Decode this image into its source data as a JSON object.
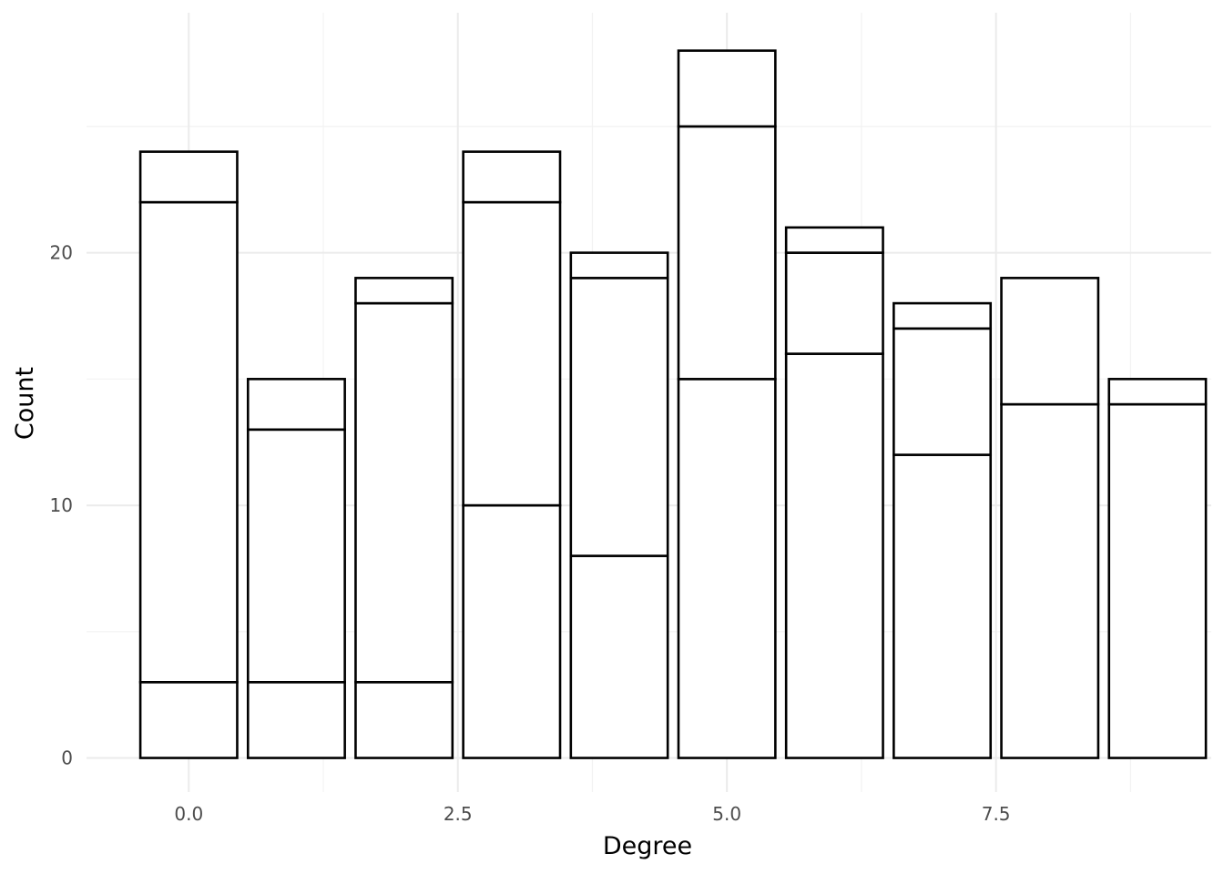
{
  "chart_data": {
    "type": "bar",
    "stacked": true,
    "title": "",
    "xlabel": "Degree",
    "ylabel": "Count",
    "x_ticks": [
      "0.0",
      "2.5",
      "5.0",
      "7.5"
    ],
    "x_tick_values": [
      0,
      2.5,
      5,
      7.5
    ],
    "y_ticks": [
      "0",
      "10",
      "20"
    ],
    "y_tick_values": [
      0,
      10,
      20
    ],
    "xlim": [
      -0.95,
      9.5
    ],
    "ylim": [
      -1.35,
      29.5
    ],
    "bar_width": 0.9,
    "grid": true,
    "legend": "none",
    "colors": {
      "fill": "#ffffff",
      "outline": "#000000",
      "grid": "#ebebeb"
    },
    "x": [
      0,
      1,
      2,
      3,
      4,
      5,
      6,
      7,
      8,
      9
    ],
    "series": [
      {
        "values": [
          3,
          3,
          3,
          10,
          8,
          15,
          16,
          12,
          14,
          14
        ]
      },
      {
        "values": [
          19,
          10,
          15,
          12,
          11,
          10,
          4,
          5,
          5,
          1
        ]
      },
      {
        "values": [
          2,
          2,
          1,
          2,
          1,
          3,
          1,
          1,
          0,
          0
        ]
      }
    ],
    "totals": [
      24,
      15,
      19,
      24,
      20,
      28,
      21,
      18,
      19,
      15
    ]
  }
}
